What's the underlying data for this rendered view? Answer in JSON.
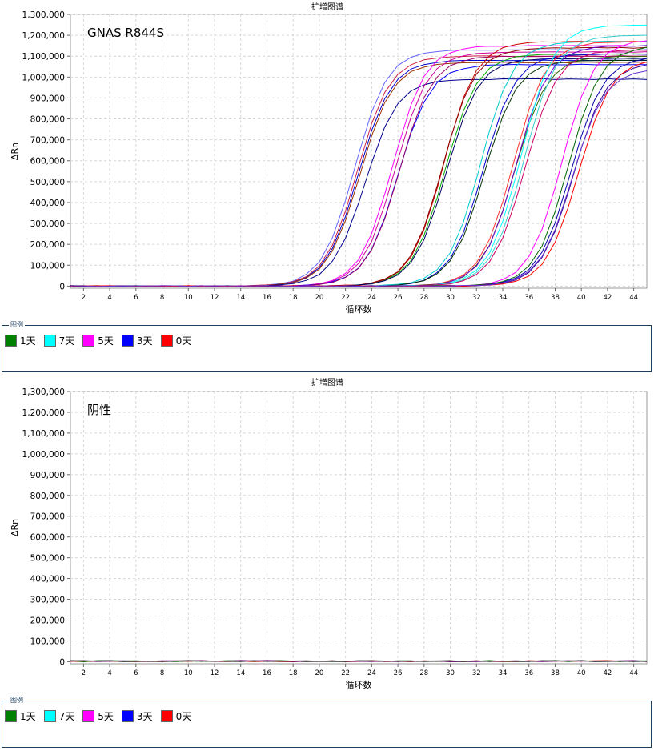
{
  "legend_caption": "图例",
  "chart_data": [
    {
      "type": "line",
      "title": "扩增图谱",
      "annotation": "GNAS R844S",
      "xlabel": "循环数",
      "ylabel": "ΔRn",
      "xlim": [
        1,
        45
      ],
      "ylim": [
        -10000,
        1300000
      ],
      "xticks": [
        2,
        4,
        6,
        8,
        10,
        12,
        14,
        16,
        18,
        20,
        22,
        24,
        26,
        28,
        30,
        32,
        34,
        36,
        38,
        40,
        42,
        44
      ],
      "yticks": [
        0,
        100000,
        200000,
        300000,
        400000,
        500000,
        600000,
        700000,
        800000,
        900000,
        1000000,
        1100000,
        1200000,
        1300000
      ],
      "ytick_labels": [
        "0",
        "100,000",
        "200,000",
        "300,000",
        "400,000",
        "500,000",
        "600,000",
        "700,000",
        "800,000",
        "900,000",
        "1,000,000",
        "1,100,000",
        "1,200,000",
        "1,300,000"
      ],
      "grid": true,
      "legend": "below",
      "legend_entries": [
        {
          "label": "1天",
          "color": "#008000"
        },
        {
          "label": "7天",
          "color": "#00ffff"
        },
        {
          "label": "5天",
          "color": "#ff00ff"
        },
        {
          "label": "3天",
          "color": "#0000ff"
        },
        {
          "label": "0天",
          "color": "#ff0000"
        }
      ],
      "series": [
        {
          "color": "#0000cc",
          "midpoint": 23.0,
          "plateau": 1080000
        },
        {
          "color": "#6666ff",
          "midpoint": 22.7,
          "plateau": 1130000
        },
        {
          "color": "#cc2244",
          "midpoint": 22.9,
          "plateau": 1100000
        },
        {
          "color": "#993300",
          "midpoint": 23.1,
          "plateau": 1070000
        },
        {
          "color": "#00008b",
          "midpoint": 23.5,
          "plateau": 990000
        },
        {
          "color": "#ff00ff",
          "midpoint": 25.6,
          "plateau": 1150000
        },
        {
          "color": "#cc0099",
          "midpoint": 25.8,
          "plateau": 1120000
        },
        {
          "color": "#0000ff",
          "midpoint": 26.0,
          "plateau": 1060000
        },
        {
          "color": "#990066",
          "midpoint": 26.1,
          "plateau": 1100000
        },
        {
          "color": "#cc0000",
          "midpoint": 29.5,
          "plateau": 1170000
        },
        {
          "color": "#00aa00",
          "midpoint": 29.6,
          "plateau": 1110000
        },
        {
          "color": "#8b0000",
          "midpoint": 29.4,
          "plateau": 1140000
        },
        {
          "color": "#000066",
          "midpoint": 29.7,
          "plateau": 1090000
        },
        {
          "color": "#00cccc",
          "midpoint": 32.3,
          "plateau": 1170000
        },
        {
          "color": "#0000cc",
          "midpoint": 32.5,
          "plateau": 1110000
        },
        {
          "color": "#003300",
          "midpoint": 32.6,
          "plateau": 1080000
        },
        {
          "color": "#ff3333",
          "midpoint": 34.8,
          "plateau": 1170000
        },
        {
          "color": "#336600",
          "midpoint": 34.9,
          "plateau": 1100000
        },
        {
          "color": "#6600cc",
          "midpoint": 35.0,
          "plateau": 1150000
        },
        {
          "color": "#00ffff",
          "midpoint": 35.4,
          "plateau": 1250000
        },
        {
          "color": "#33cccc",
          "midpoint": 35.6,
          "plateau": 1200000
        },
        {
          "color": "#cc0066",
          "midpoint": 35.7,
          "plateau": 1130000
        },
        {
          "color": "#ff00ff",
          "midpoint": 38.5,
          "plateau": 1180000
        },
        {
          "color": "#006400",
          "midpoint": 39.0,
          "plateau": 1150000
        },
        {
          "color": "#0000aa",
          "midpoint": 39.2,
          "plateau": 1100000
        },
        {
          "color": "#330099",
          "midpoint": 39.4,
          "plateau": 1070000
        },
        {
          "color": "#ff0000",
          "midpoint": 39.8,
          "plateau": 1090000
        },
        {
          "color": "#6633cc",
          "midpoint": 39.3,
          "plateau": 1040000
        }
      ]
    },
    {
      "type": "line",
      "title": "扩增图谱",
      "annotation": "阴性",
      "xlabel": "循环数",
      "ylabel": "ΔRn",
      "xlim": [
        1,
        45
      ],
      "ylim": [
        -10000,
        1300000
      ],
      "xticks": [
        2,
        4,
        6,
        8,
        10,
        12,
        14,
        16,
        18,
        20,
        22,
        24,
        26,
        28,
        30,
        32,
        34,
        36,
        38,
        40,
        42,
        44
      ],
      "yticks": [
        0,
        100000,
        200000,
        300000,
        400000,
        500000,
        600000,
        700000,
        800000,
        900000,
        1000000,
        1100000,
        1200000,
        1300000
      ],
      "ytick_labels": [
        "0",
        "100,000",
        "200,000",
        "300,000",
        "400,000",
        "500,000",
        "600,000",
        "700,000",
        "800,000",
        "900,000",
        "1,000,000",
        "1,100,000",
        "1,200,000",
        "1,300,000"
      ],
      "grid": true,
      "legend": "below",
      "legend_entries": [
        {
          "label": "1天",
          "color": "#008000"
        },
        {
          "label": "7天",
          "color": "#00ffff"
        },
        {
          "label": "5天",
          "color": "#ff00ff"
        },
        {
          "label": "3天",
          "color": "#0000ff"
        },
        {
          "label": "0天",
          "color": "#ff0000"
        }
      ],
      "series": [
        {
          "color": "#cc0000",
          "midpoint": null,
          "plateau": 0
        },
        {
          "color": "#006400",
          "midpoint": null,
          "plateau": 0
        },
        {
          "color": "#660066",
          "midpoint": null,
          "plateau": 0
        },
        {
          "color": "#333333",
          "midpoint": null,
          "plateau": 0
        }
      ]
    }
  ]
}
